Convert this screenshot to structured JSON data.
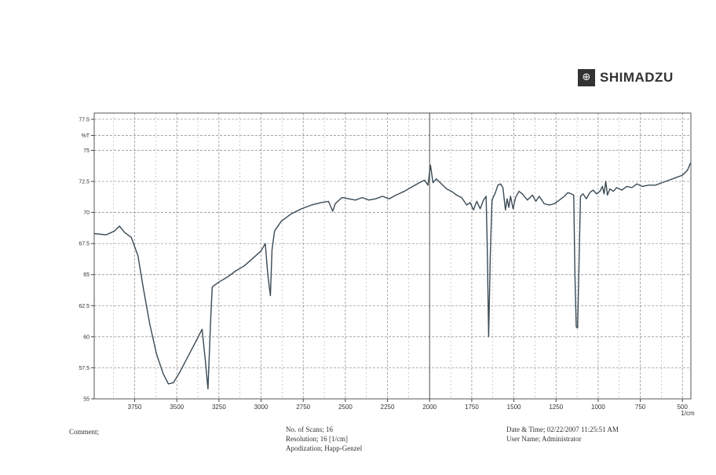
{
  "logo": {
    "text": "SHIMADZU",
    "icon": "shimadzu-logo-icon"
  },
  "footer": {
    "comment_label": "Comment;",
    "scans": "No. of Scans; 16",
    "resolution": "Resolution; 16 [1/cm]",
    "apodization": "Apodization; Happ-Genzel",
    "datetime": "Date & Time; 02/22/2007 11:25:51 AM",
    "user": "User Name; Administrator"
  },
  "chart_data": {
    "type": "line",
    "title": "",
    "xlabel": "1/cm",
    "ylabel": "%T",
    "x_reversed": true,
    "xlim": [
      3990,
      450
    ],
    "ylim": [
      55,
      78
    ],
    "grid": true,
    "y_ticks": [
      {
        "value": 77.5,
        "label": "77.5"
      },
      {
        "value": 76.2,
        "label": "%T"
      },
      {
        "value": 75,
        "label": "75"
      },
      {
        "value": 72.5,
        "label": "72.5"
      },
      {
        "value": 70,
        "label": "70"
      },
      {
        "value": 67.5,
        "label": "67.5"
      },
      {
        "value": 65,
        "label": "65"
      },
      {
        "value": 62.5,
        "label": "62.5"
      },
      {
        "value": 60,
        "label": "60"
      },
      {
        "value": 57.5,
        "label": "57.5"
      },
      {
        "value": 55,
        "label": "55"
      }
    ],
    "x_ticks": [
      3750,
      3500,
      3250,
      3000,
      2750,
      2500,
      2250,
      2000,
      1750,
      1500,
      1250,
      1000,
      750,
      500
    ],
    "series": [
      {
        "color": "#3a4a55",
        "points": [
          [
            3990,
            68.3
          ],
          [
            3920,
            68.2
          ],
          [
            3870,
            68.5
          ],
          [
            3840,
            68.9
          ],
          [
            3810,
            68.4
          ],
          [
            3770,
            68.0
          ],
          [
            3730,
            66.5
          ],
          [
            3700,
            64.0
          ],
          [
            3660,
            61.0
          ],
          [
            3620,
            58.6
          ],
          [
            3580,
            57.0
          ],
          [
            3550,
            56.2
          ],
          [
            3520,
            56.3
          ],
          [
            3480,
            57.2
          ],
          [
            3430,
            58.5
          ],
          [
            3380,
            59.8
          ],
          [
            3350,
            60.6
          ],
          [
            3330,
            58.0
          ],
          [
            3315,
            55.8
          ],
          [
            3300,
            61.0
          ],
          [
            3290,
            64.0
          ],
          [
            3250,
            64.4
          ],
          [
            3200,
            64.8
          ],
          [
            3150,
            65.3
          ],
          [
            3100,
            65.7
          ],
          [
            3050,
            66.3
          ],
          [
            3000,
            66.9
          ],
          [
            2975,
            67.5
          ],
          [
            2960,
            65.0
          ],
          [
            2945,
            63.3
          ],
          [
            2935,
            67.0
          ],
          [
            2920,
            68.5
          ],
          [
            2880,
            69.3
          ],
          [
            2820,
            69.9
          ],
          [
            2760,
            70.3
          ],
          [
            2700,
            70.6
          ],
          [
            2640,
            70.8
          ],
          [
            2600,
            70.9
          ],
          [
            2575,
            70.1
          ],
          [
            2560,
            70.7
          ],
          [
            2520,
            71.2
          ],
          [
            2480,
            71.1
          ],
          [
            2440,
            71.0
          ],
          [
            2400,
            71.2
          ],
          [
            2360,
            71.0
          ],
          [
            2320,
            71.1
          ],
          [
            2280,
            71.3
          ],
          [
            2240,
            71.1
          ],
          [
            2200,
            71.4
          ],
          [
            2150,
            71.7
          ],
          [
            2100,
            72.1
          ],
          [
            2060,
            72.4
          ],
          [
            2030,
            72.6
          ],
          [
            2010,
            72.2
          ],
          [
            1995,
            73.8
          ],
          [
            1980,
            72.4
          ],
          [
            1960,
            72.7
          ],
          [
            1930,
            72.3
          ],
          [
            1900,
            71.9
          ],
          [
            1870,
            71.7
          ],
          [
            1840,
            71.4
          ],
          [
            1810,
            71.2
          ],
          [
            1780,
            70.6
          ],
          [
            1760,
            70.8
          ],
          [
            1740,
            70.2
          ],
          [
            1720,
            70.9
          ],
          [
            1700,
            70.3
          ],
          [
            1680,
            71.0
          ],
          [
            1665,
            71.3
          ],
          [
            1658,
            67.0
          ],
          [
            1650,
            60.0
          ],
          [
            1640,
            66.5
          ],
          [
            1630,
            71.0
          ],
          [
            1610,
            71.6
          ],
          [
            1595,
            72.2
          ],
          [
            1580,
            72.3
          ],
          [
            1565,
            72.0
          ],
          [
            1550,
            70.2
          ],
          [
            1540,
            71.1
          ],
          [
            1530,
            70.4
          ],
          [
            1520,
            71.3
          ],
          [
            1505,
            70.3
          ],
          [
            1490,
            71.2
          ],
          [
            1470,
            71.7
          ],
          [
            1450,
            71.5
          ],
          [
            1420,
            71.0
          ],
          [
            1390,
            71.4
          ],
          [
            1370,
            70.9
          ],
          [
            1350,
            71.3
          ],
          [
            1320,
            70.7
          ],
          [
            1290,
            70.6
          ],
          [
            1260,
            70.7
          ],
          [
            1240,
            70.9
          ],
          [
            1220,
            71.1
          ],
          [
            1200,
            71.3
          ],
          [
            1180,
            71.6
          ],
          [
            1160,
            71.5
          ],
          [
            1145,
            71.4
          ],
          [
            1138,
            65.0
          ],
          [
            1130,
            60.8
          ],
          [
            1122,
            60.7
          ],
          [
            1112,
            67.0
          ],
          [
            1105,
            71.3
          ],
          [
            1090,
            71.5
          ],
          [
            1070,
            71.1
          ],
          [
            1050,
            71.6
          ],
          [
            1030,
            71.8
          ],
          [
            1010,
            71.5
          ],
          [
            990,
            71.7
          ],
          [
            975,
            72.1
          ],
          [
            965,
            71.5
          ],
          [
            955,
            72.5
          ],
          [
            945,
            71.4
          ],
          [
            930,
            71.9
          ],
          [
            910,
            71.7
          ],
          [
            890,
            72.0
          ],
          [
            860,
            71.8
          ],
          [
            830,
            72.1
          ],
          [
            800,
            72.0
          ],
          [
            770,
            72.3
          ],
          [
            740,
            72.1
          ],
          [
            700,
            72.2
          ],
          [
            660,
            72.2
          ],
          [
            620,
            72.4
          ],
          [
            580,
            72.6
          ],
          [
            540,
            72.8
          ],
          [
            500,
            73.0
          ],
          [
            470,
            73.4
          ],
          [
            455,
            73.9
          ],
          [
            450,
            74.0
          ]
        ]
      }
    ]
  }
}
